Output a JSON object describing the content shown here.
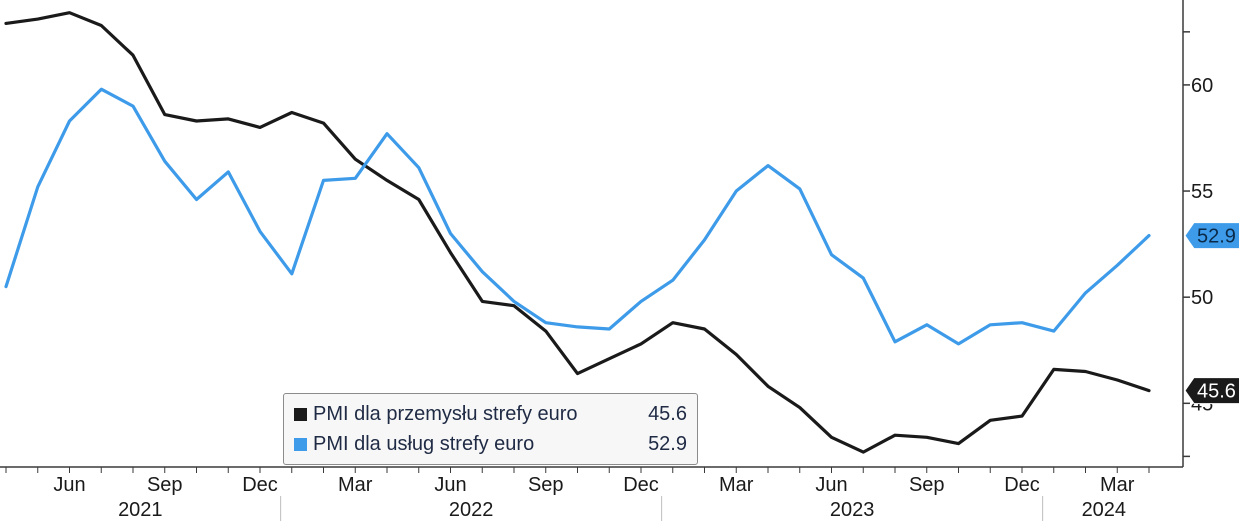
{
  "chart_data": {
    "type": "line",
    "x": [
      "2021-04",
      "2021-05",
      "2021-06",
      "2021-07",
      "2021-08",
      "2021-09",
      "2021-10",
      "2021-11",
      "2021-12",
      "2022-01",
      "2022-02",
      "2022-03",
      "2022-04",
      "2022-05",
      "2022-06",
      "2022-07",
      "2022-08",
      "2022-09",
      "2022-10",
      "2022-11",
      "2022-12",
      "2023-01",
      "2023-02",
      "2023-03",
      "2023-04",
      "2023-05",
      "2023-06",
      "2023-07",
      "2023-08",
      "2023-09",
      "2023-10",
      "2023-11",
      "2023-12",
      "2024-01",
      "2024-02",
      "2024-03",
      "2024-04"
    ],
    "series": [
      {
        "name": "PMI dla przemysłu strefy euro",
        "color": "#1a1a1a",
        "values": [
          62.9,
          63.1,
          63.4,
          62.8,
          61.4,
          58.6,
          58.3,
          58.4,
          58.0,
          58.7,
          58.2,
          56.5,
          55.5,
          54.6,
          52.1,
          49.8,
          49.6,
          48.4,
          46.4,
          47.1,
          47.8,
          48.8,
          48.5,
          47.3,
          45.8,
          44.8,
          43.4,
          42.7,
          43.5,
          43.4,
          43.1,
          44.2,
          44.4,
          46.6,
          46.5,
          46.1,
          45.6
        ]
      },
      {
        "name": "PMI dla usług strefy euro",
        "color": "#3d9be9",
        "values": [
          50.5,
          55.2,
          58.3,
          59.8,
          59.0,
          56.4,
          54.6,
          55.9,
          53.1,
          51.1,
          55.5,
          55.6,
          57.7,
          56.1,
          53.0,
          51.2,
          49.8,
          48.8,
          48.6,
          48.5,
          49.8,
          50.8,
          52.7,
          55.0,
          56.2,
          55.1,
          52.0,
          50.9,
          47.9,
          48.7,
          47.8,
          48.7,
          48.8,
          48.4,
          50.2,
          51.5,
          52.9
        ]
      }
    ],
    "yaxis": {
      "side": "right",
      "ylim": [
        42.0,
        64.0
      ],
      "ticks": [
        60,
        55,
        50,
        45
      ],
      "tick_labels": [
        "60",
        "55",
        "50",
        "45"
      ]
    },
    "xaxis": {
      "month_labels": [
        "Jun",
        "Sep",
        "Dec",
        "Mar",
        "Jun",
        "Sep",
        "Dec",
        "Mar",
        "Jun",
        "Sep",
        "Dec",
        "Mar"
      ],
      "month_label_dates": [
        "2021-06",
        "2021-09",
        "2021-12",
        "2022-03",
        "2022-06",
        "2022-09",
        "2022-12",
        "2023-03",
        "2023-06",
        "2023-09",
        "2023-12",
        "2024-03"
      ],
      "year_labels": [
        "2021",
        "2022",
        "2023",
        "2024"
      ]
    },
    "last_value_labels": [
      "45.6",
      "52.9"
    ],
    "grid": false
  },
  "legend": {
    "items": [
      {
        "name": "PMI dla przemysłu strefy euro",
        "value": "45.6",
        "color": "#1a1a1a"
      },
      {
        "name": "PMI dla usług strefy euro",
        "value": "52.9",
        "color": "#3d9be9"
      }
    ],
    "placement": "bottom-center"
  }
}
